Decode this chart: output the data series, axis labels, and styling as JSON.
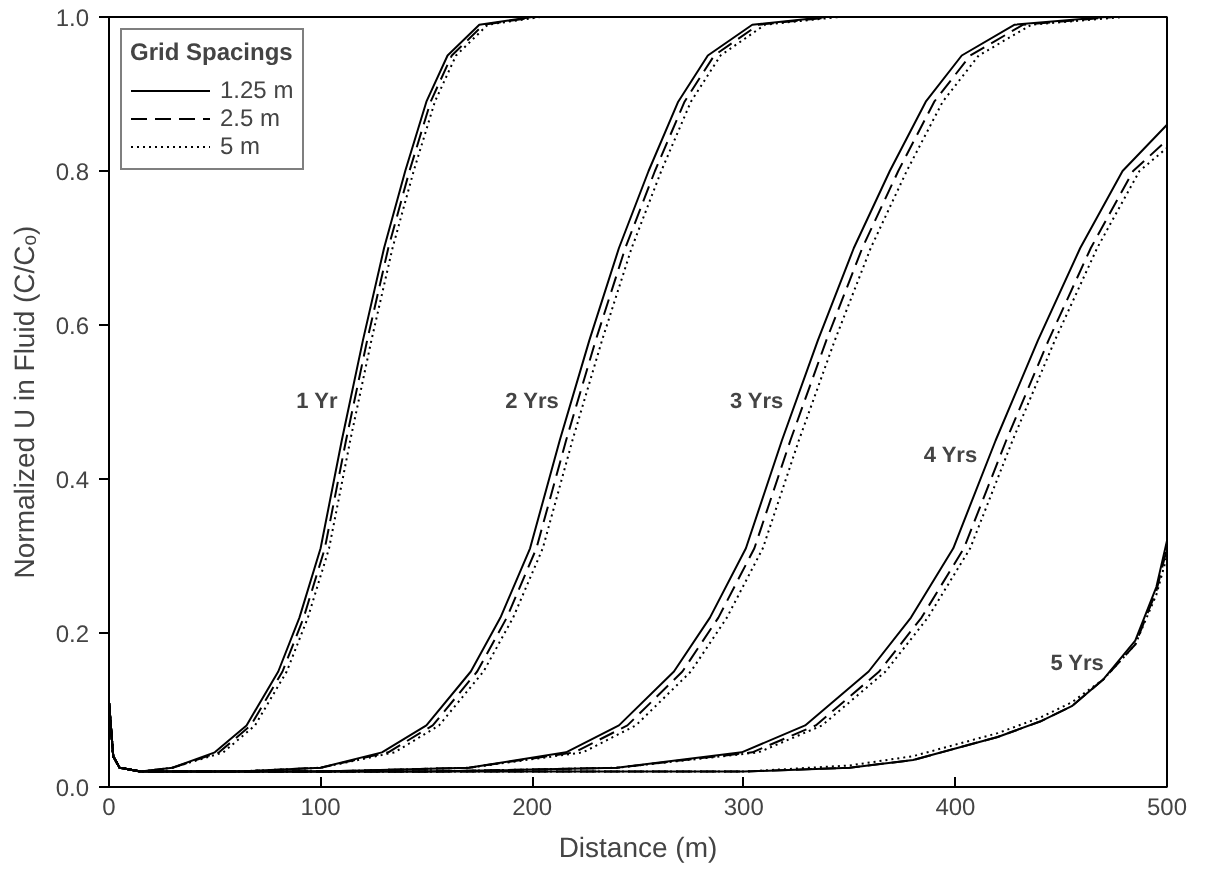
{
  "chart_data": {
    "type": "line",
    "xlabel": "Distance (m)",
    "ylabel": "Normalized U in Fluid (C/Cₒ)",
    "legend_title": "Grid Spacings",
    "xlim": [
      0,
      500
    ],
    "ylim": [
      0,
      1.0
    ],
    "xticks": [
      0,
      100,
      200,
      300,
      400,
      500
    ],
    "yticks": [
      {
        "value": 0,
        "label": "0.0"
      },
      {
        "value": 0.2,
        "label": "0.2"
      },
      {
        "value": 0.4,
        "label": "0.4"
      },
      {
        "value": 0.6,
        "label": "0.6"
      },
      {
        "value": 0.8,
        "label": "0.8"
      },
      {
        "value": 1.0,
        "label": "1.0"
      }
    ],
    "grid": false,
    "legend": "top left",
    "marker": "none",
    "annotations": [
      "1 Yr",
      "2 Yrs",
      "3 Yrs",
      "4 Yrs",
      "5 Yrs"
    ],
    "series": [
      {
        "name": "1.25 m",
        "color": "#000000",
        "line_style": "solid",
        "x": [
          0,
          2,
          5,
          15,
          30,
          50,
          65,
          80,
          90,
          100,
          110,
          120,
          130,
          140,
          150,
          160,
          175,
          200,
          500
        ],
        "values": [
          0.11,
          0.04,
          0.025,
          0.02,
          0.025,
          0.045,
          0.08,
          0.15,
          0.22,
          0.31,
          0.45,
          0.58,
          0.7,
          0.8,
          0.89,
          0.95,
          0.99,
          1.0,
          1.0
        ]
      },
      {
        "name": "2.5 m",
        "color": "#000000",
        "line_style": "dashed",
        "x": [
          0,
          2,
          5,
          15,
          30,
          52,
          67,
          82,
          92,
          102,
          112,
          122,
          132,
          142,
          152,
          162,
          177,
          202,
          500
        ],
        "values": [
          0.11,
          0.04,
          0.025,
          0.02,
          0.025,
          0.045,
          0.08,
          0.15,
          0.22,
          0.31,
          0.45,
          0.58,
          0.7,
          0.8,
          0.89,
          0.95,
          0.99,
          1.0,
          1.0
        ]
      },
      {
        "name": "5 m",
        "color": "#000000",
        "line_style": "dotted",
        "x": [
          0,
          2,
          5,
          15,
          30,
          54,
          69,
          84,
          94,
          104,
          114,
          124,
          134,
          144,
          154,
          164,
          179,
          204,
          500
        ],
        "values": [
          0.11,
          0.04,
          0.025,
          0.02,
          0.025,
          0.045,
          0.08,
          0.15,
          0.22,
          0.31,
          0.45,
          0.58,
          0.7,
          0.8,
          0.89,
          0.95,
          0.99,
          1.0,
          1.0
        ]
      },
      {
        "color": "#000000",
        "line_style": "solid",
        "x": [
          0,
          2,
          5,
          15,
          60,
          100,
          129,
          150,
          171,
          185,
          199,
          213,
          227,
          241,
          255,
          269,
          283,
          304,
          339,
          500
        ],
        "values": [
          0.11,
          0.04,
          0.025,
          0.02,
          0.02,
          0.025,
          0.045,
          0.08,
          0.15,
          0.22,
          0.31,
          0.45,
          0.58,
          0.7,
          0.8,
          0.89,
          0.95,
          0.99,
          1.0,
          1.0
        ]
      },
      {
        "color": "#000000",
        "line_style": "dashed",
        "x": [
          0,
          2,
          5,
          15,
          60,
          100,
          132,
          153,
          174,
          188,
          202,
          216,
          230,
          244,
          258,
          272,
          286,
          307,
          342,
          500
        ],
        "values": [
          0.11,
          0.04,
          0.025,
          0.02,
          0.02,
          0.025,
          0.045,
          0.08,
          0.15,
          0.22,
          0.31,
          0.45,
          0.58,
          0.7,
          0.8,
          0.89,
          0.95,
          0.99,
          1.0,
          1.0
        ]
      },
      {
        "color": "#000000",
        "line_style": "dotted",
        "x": [
          0,
          2,
          5,
          15,
          60,
          100,
          135,
          156,
          177,
          191,
          205,
          219,
          233,
          247,
          261,
          275,
          289,
          310,
          345,
          500
        ],
        "values": [
          0.11,
          0.04,
          0.025,
          0.02,
          0.02,
          0.025,
          0.045,
          0.08,
          0.15,
          0.22,
          0.31,
          0.45,
          0.58,
          0.7,
          0.8,
          0.89,
          0.95,
          0.99,
          1.0,
          1.0
        ]
      },
      {
        "color": "#000000",
        "line_style": "solid",
        "x": [
          0,
          2,
          5,
          15,
          100,
          170,
          216,
          241,
          267,
          284,
          301,
          318,
          335,
          352,
          369,
          386,
          403,
          428,
          471,
          500
        ],
        "values": [
          0.11,
          0.04,
          0.025,
          0.02,
          0.02,
          0.025,
          0.045,
          0.08,
          0.15,
          0.22,
          0.31,
          0.45,
          0.58,
          0.7,
          0.8,
          0.89,
          0.95,
          0.99,
          1.0,
          1.0
        ]
      },
      {
        "color": "#000000",
        "line_style": "dashed",
        "x": [
          0,
          2,
          5,
          15,
          100,
          170,
          220,
          245,
          271,
          288,
          305,
          322,
          339,
          356,
          373,
          390,
          407,
          432,
          475,
          500
        ],
        "values": [
          0.11,
          0.04,
          0.025,
          0.02,
          0.02,
          0.025,
          0.045,
          0.08,
          0.15,
          0.22,
          0.31,
          0.45,
          0.58,
          0.7,
          0.8,
          0.89,
          0.95,
          0.99,
          1.0,
          1.0
        ]
      },
      {
        "color": "#000000",
        "line_style": "dotted",
        "x": [
          0,
          2,
          5,
          15,
          100,
          170,
          224,
          249,
          275,
          292,
          309,
          326,
          343,
          360,
          377,
          394,
          411,
          436,
          479,
          500
        ],
        "values": [
          0.11,
          0.04,
          0.025,
          0.02,
          0.02,
          0.025,
          0.045,
          0.08,
          0.15,
          0.22,
          0.31,
          0.45,
          0.58,
          0.7,
          0.8,
          0.89,
          0.95,
          0.99,
          1.0,
          1.0
        ]
      },
      {
        "color": "#000000",
        "line_style": "solid",
        "x": [
          0,
          2,
          5,
          15,
          150,
          240,
          299,
          329,
          359,
          379,
          399,
          419,
          439,
          459,
          479,
          500
        ],
        "values": [
          0.11,
          0.04,
          0.025,
          0.02,
          0.02,
          0.025,
          0.045,
          0.08,
          0.15,
          0.22,
          0.31,
          0.45,
          0.58,
          0.7,
          0.8,
          0.86
        ]
      },
      {
        "color": "#000000",
        "line_style": "dashed",
        "x": [
          0,
          2,
          5,
          15,
          150,
          240,
          304,
          334,
          364,
          384,
          404,
          424,
          444,
          464,
          484,
          500
        ],
        "values": [
          0.11,
          0.04,
          0.025,
          0.02,
          0.02,
          0.025,
          0.045,
          0.08,
          0.15,
          0.22,
          0.31,
          0.45,
          0.58,
          0.7,
          0.8,
          0.84
        ]
      },
      {
        "color": "#000000",
        "line_style": "dotted",
        "x": [
          0,
          2,
          5,
          15,
          150,
          240,
          307,
          337,
          367,
          387,
          407,
          427,
          447,
          467,
          487,
          500
        ],
        "values": [
          0.11,
          0.04,
          0.025,
          0.02,
          0.02,
          0.025,
          0.045,
          0.08,
          0.15,
          0.22,
          0.31,
          0.45,
          0.58,
          0.7,
          0.8,
          0.83
        ]
      },
      {
        "color": "#000000",
        "line_style": "solid",
        "x": [
          0,
          2,
          5,
          15,
          300,
          350,
          380,
          400,
          420,
          440,
          455,
          470,
          485,
          495,
          500
        ],
        "values": [
          0.11,
          0.04,
          0.025,
          0.02,
          0.02,
          0.025,
          0.035,
          0.05,
          0.065,
          0.085,
          0.105,
          0.14,
          0.19,
          0.26,
          0.32
        ]
      },
      {
        "color": "#000000",
        "line_style": "dashed",
        "x": [
          0,
          2,
          5,
          15,
          300,
          350,
          380,
          400,
          420,
          440,
          455,
          470,
          485,
          495,
          500
        ],
        "values": [
          0.11,
          0.04,
          0.025,
          0.02,
          0.02,
          0.025,
          0.035,
          0.05,
          0.065,
          0.085,
          0.105,
          0.14,
          0.185,
          0.255,
          0.31
        ]
      },
      {
        "color": "#000000",
        "line_style": "dotted",
        "x": [
          0,
          2,
          5,
          15,
          300,
          350,
          380,
          400,
          420,
          440,
          455,
          470,
          485,
          495,
          500
        ],
        "values": [
          0.11,
          0.04,
          0.025,
          0.02,
          0.02,
          0.028,
          0.04,
          0.055,
          0.07,
          0.09,
          0.11,
          0.14,
          0.185,
          0.25,
          0.3
        ]
      }
    ]
  }
}
